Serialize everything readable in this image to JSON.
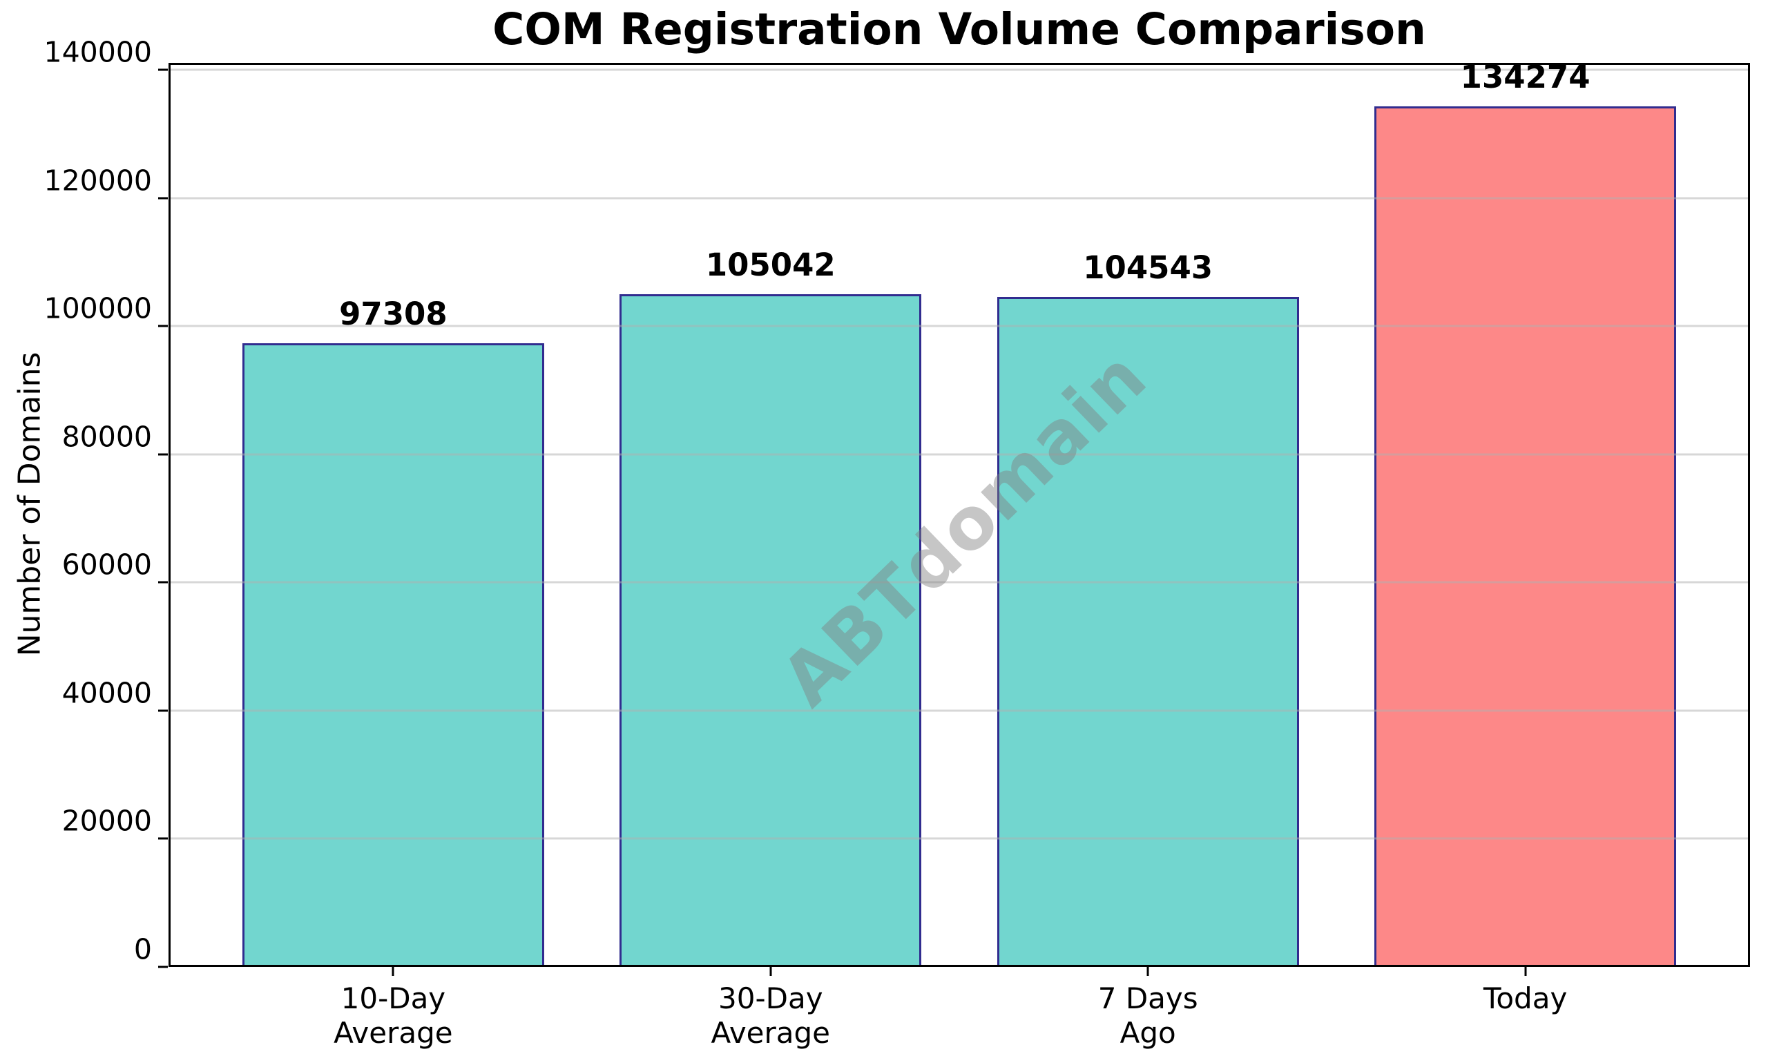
{
  "chart_data": {
    "type": "bar",
    "title": "COM Registration Volume Comparison",
    "xlabel": "",
    "ylabel": "Number of Domains",
    "categories": [
      "10-Day\nAverage",
      "30-Day\nAverage",
      "7 Days\nAgo",
      "Today"
    ],
    "values": [
      97308,
      105042,
      104543,
      134274
    ],
    "value_labels": [
      "97308",
      "105042",
      "104543",
      "134274"
    ],
    "bar_fill_colors": [
      "#72d6cf",
      "#72d6cf",
      "#72d6cf",
      "#fd8888"
    ],
    "bar_edge_color": "#312c8f",
    "yticks": [
      0,
      20000,
      40000,
      60000,
      80000,
      100000,
      120000,
      140000
    ],
    "ytick_labels": [
      "0",
      "20000",
      "40000",
      "60000",
      "80000",
      "100000",
      "120000",
      "140000"
    ],
    "ylim": [
      0,
      141100
    ],
    "grid": "horizontal",
    "gridline_color": "#b0b0b0",
    "legend": "none",
    "watermark": {
      "text": "ABTdomain",
      "angle_deg": -44,
      "color": "#808080",
      "opacity": 0.45
    }
  }
}
